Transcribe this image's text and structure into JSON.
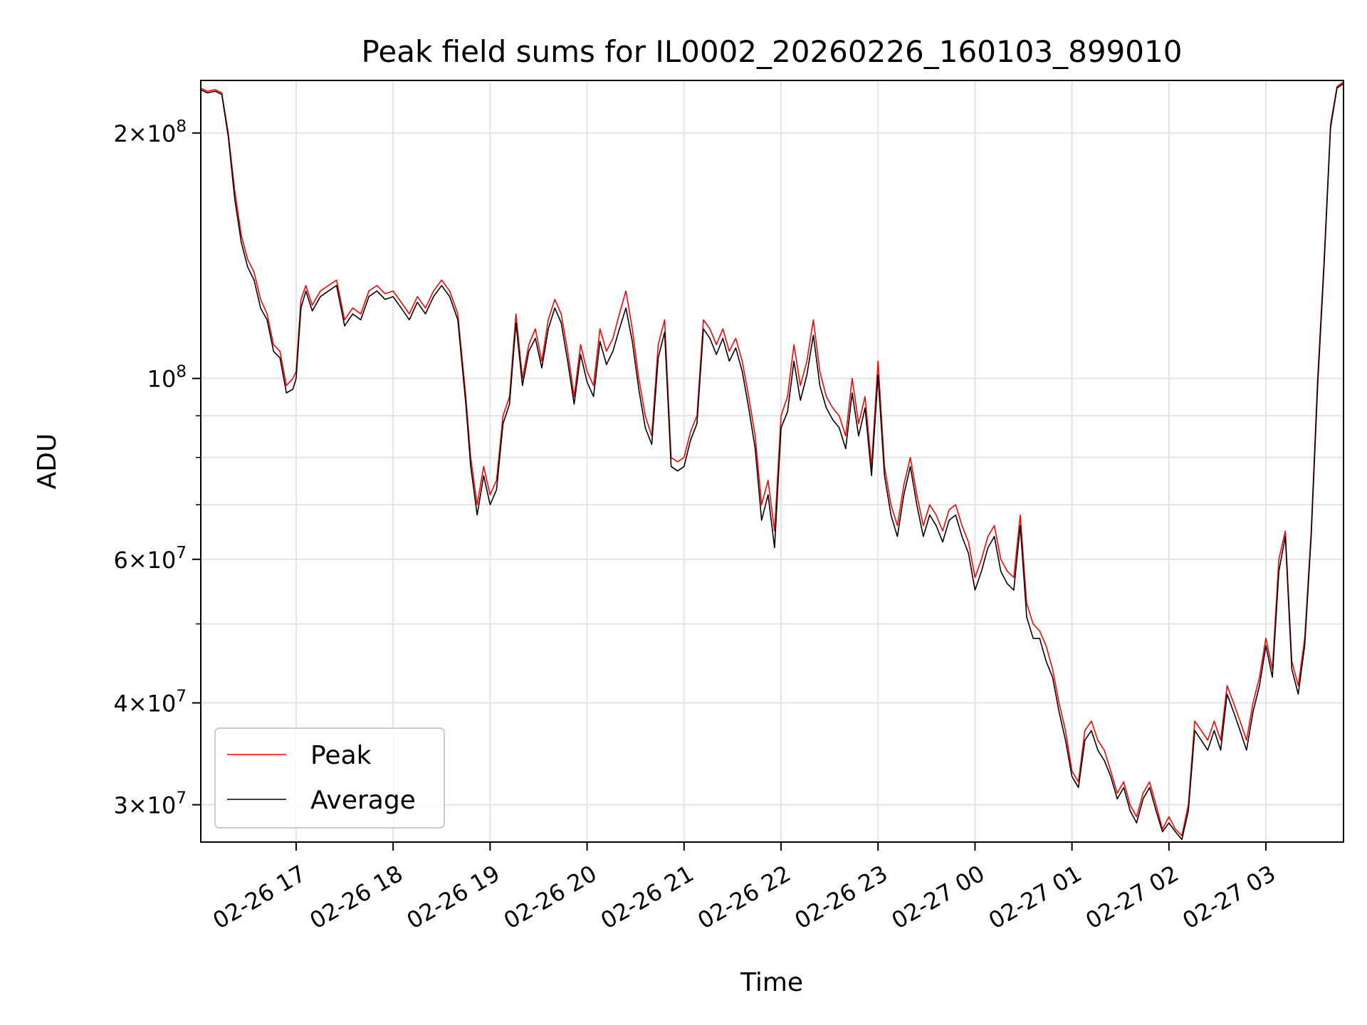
{
  "chart_data": {
    "type": "line",
    "title": "Peak field sums for IL0002_20260226_160103_899010",
    "xlabel": "Time",
    "ylabel": "ADU",
    "x_scale": "time",
    "y_scale": "log",
    "xlim": [
      "2026-02-26 16:01",
      "2026-02-27 03:48"
    ],
    "ylim": [
      27000000,
      232000000
    ],
    "x_ticks": [
      {
        "value": "2026-02-26 17:00",
        "label": "02-26 17"
      },
      {
        "value": "2026-02-26 18:00",
        "label": "02-26 18"
      },
      {
        "value": "2026-02-26 19:00",
        "label": "02-26 19"
      },
      {
        "value": "2026-02-26 20:00",
        "label": "02-26 20"
      },
      {
        "value": "2026-02-26 21:00",
        "label": "02-26 21"
      },
      {
        "value": "2026-02-26 22:00",
        "label": "02-26 22"
      },
      {
        "value": "2026-02-26 23:00",
        "label": "02-26 23"
      },
      {
        "value": "2026-02-27 00:00",
        "label": "02-27 00"
      },
      {
        "value": "2026-02-27 01:00",
        "label": "02-27 01"
      },
      {
        "value": "2026-02-27 02:00",
        "label": "02-27 02"
      },
      {
        "value": "2026-02-27 03:00",
        "label": "02-27 03"
      }
    ],
    "y_major_ticks": [
      {
        "value": 30000000,
        "mant": "3",
        "exp": "7"
      },
      {
        "value": 40000000,
        "mant": "4",
        "exp": "7"
      },
      {
        "value": 60000000,
        "mant": "6",
        "exp": "7"
      },
      {
        "value": 100000000,
        "mant": "",
        "exp": "8"
      },
      {
        "value": 200000000,
        "mant": "2",
        "exp": "8"
      }
    ],
    "y_minor_ticks": [
      50000000,
      70000000,
      80000000,
      90000000
    ],
    "grid": true,
    "legend_position": "lower-left",
    "series": [
      {
        "name": "Peak",
        "color": "#ff0000",
        "x": [
          "2026-02-26 16:01",
          "2026-02-26 16:05",
          "2026-02-26 16:10",
          "2026-02-26 16:14",
          "2026-02-26 16:18",
          "2026-02-26 16:22",
          "2026-02-26 16:26",
          "2026-02-26 16:30",
          "2026-02-26 16:34",
          "2026-02-26 16:38",
          "2026-02-26 16:42",
          "2026-02-26 16:46",
          "2026-02-26 16:50",
          "2026-02-26 16:54",
          "2026-02-26 16:58",
          "2026-02-26 17:00",
          "2026-02-26 17:03",
          "2026-02-26 17:06",
          "2026-02-26 17:10",
          "2026-02-26 17:15",
          "2026-02-26 17:20",
          "2026-02-26 17:25",
          "2026-02-26 17:30",
          "2026-02-26 17:35",
          "2026-02-26 17:40",
          "2026-02-26 17:45",
          "2026-02-26 17:50",
          "2026-02-26 17:55",
          "2026-02-26 18:00",
          "2026-02-26 18:05",
          "2026-02-26 18:10",
          "2026-02-26 18:15",
          "2026-02-26 18:20",
          "2026-02-26 18:25",
          "2026-02-26 18:30",
          "2026-02-26 18:35",
          "2026-02-26 18:40",
          "2026-02-26 18:45",
          "2026-02-26 18:48",
          "2026-02-26 18:52",
          "2026-02-26 18:56",
          "2026-02-26 19:00",
          "2026-02-26 19:04",
          "2026-02-26 19:08",
          "2026-02-26 19:12",
          "2026-02-26 19:16",
          "2026-02-26 19:20",
          "2026-02-26 19:24",
          "2026-02-26 19:28",
          "2026-02-26 19:32",
          "2026-02-26 19:36",
          "2026-02-26 19:40",
          "2026-02-26 19:44",
          "2026-02-26 19:48",
          "2026-02-26 19:52",
          "2026-02-26 19:56",
          "2026-02-26 20:00",
          "2026-02-26 20:04",
          "2026-02-26 20:08",
          "2026-02-26 20:12",
          "2026-02-26 20:16",
          "2026-02-26 20:20",
          "2026-02-26 20:24",
          "2026-02-26 20:28",
          "2026-02-26 20:32",
          "2026-02-26 20:36",
          "2026-02-26 20:40",
          "2026-02-26 20:44",
          "2026-02-26 20:48",
          "2026-02-26 20:52",
          "2026-02-26 20:56",
          "2026-02-26 21:00",
          "2026-02-26 21:04",
          "2026-02-26 21:08",
          "2026-02-26 21:12",
          "2026-02-26 21:16",
          "2026-02-26 21:20",
          "2026-02-26 21:24",
          "2026-02-26 21:28",
          "2026-02-26 21:32",
          "2026-02-26 21:36",
          "2026-02-26 21:40",
          "2026-02-26 21:44",
          "2026-02-26 21:48",
          "2026-02-26 21:52",
          "2026-02-26 21:56",
          "2026-02-26 22:00",
          "2026-02-26 22:04",
          "2026-02-26 22:08",
          "2026-02-26 22:12",
          "2026-02-26 22:16",
          "2026-02-26 22:20",
          "2026-02-26 22:24",
          "2026-02-26 22:28",
          "2026-02-26 22:32",
          "2026-02-26 22:36",
          "2026-02-26 22:40",
          "2026-02-26 22:44",
          "2026-02-26 22:48",
          "2026-02-26 22:52",
          "2026-02-26 22:56",
          "2026-02-26 23:00",
          "2026-02-26 23:04",
          "2026-02-26 23:08",
          "2026-02-26 23:12",
          "2026-02-26 23:16",
          "2026-02-26 23:20",
          "2026-02-26 23:24",
          "2026-02-26 23:28",
          "2026-02-26 23:32",
          "2026-02-26 23:36",
          "2026-02-26 23:40",
          "2026-02-26 23:44",
          "2026-02-26 23:48",
          "2026-02-26 23:52",
          "2026-02-26 23:56",
          "2026-02-27 00:00",
          "2026-02-27 00:04",
          "2026-02-27 00:08",
          "2026-02-27 00:12",
          "2026-02-27 00:16",
          "2026-02-27 00:20",
          "2026-02-27 00:24",
          "2026-02-27 00:28",
          "2026-02-27 00:32",
          "2026-02-27 00:36",
          "2026-02-27 00:40",
          "2026-02-27 00:44",
          "2026-02-27 00:48",
          "2026-02-27 00:52",
          "2026-02-27 00:56",
          "2026-02-27 01:00",
          "2026-02-27 01:04",
          "2026-02-27 01:08",
          "2026-02-27 01:12",
          "2026-02-27 01:16",
          "2026-02-27 01:20",
          "2026-02-27 01:24",
          "2026-02-27 01:28",
          "2026-02-27 01:32",
          "2026-02-27 01:36",
          "2026-02-27 01:40",
          "2026-02-27 01:44",
          "2026-02-27 01:48",
          "2026-02-27 01:52",
          "2026-02-27 01:56",
          "2026-02-27 02:00",
          "2026-02-27 02:04",
          "2026-02-27 02:08",
          "2026-02-27 02:12",
          "2026-02-27 02:16",
          "2026-02-27 02:20",
          "2026-02-27 02:24",
          "2026-02-27 02:28",
          "2026-02-27 02:32",
          "2026-02-27 02:36",
          "2026-02-27 02:40",
          "2026-02-27 02:44",
          "2026-02-27 02:48",
          "2026-02-27 02:52",
          "2026-02-27 02:56",
          "2026-02-27 03:00",
          "2026-02-27 03:04",
          "2026-02-27 03:08",
          "2026-02-27 03:12",
          "2026-02-27 03:16",
          "2026-02-27 03:20",
          "2026-02-27 03:24",
          "2026-02-27 03:28",
          "2026-02-27 03:32",
          "2026-02-27 03:36",
          "2026-02-27 03:40",
          "2026-02-27 03:44",
          "2026-02-27 03:48"
        ],
        "y": [
          227000000,
          225000000,
          226000000,
          224000000,
          200000000,
          170000000,
          150000000,
          140000000,
          135000000,
          125000000,
          120000000,
          110000000,
          108000000,
          98000000,
          100000000,
          102000000,
          125000000,
          130000000,
          123000000,
          128000000,
          130000000,
          132000000,
          118000000,
          122000000,
          120000000,
          128000000,
          130000000,
          127000000,
          128000000,
          124000000,
          120000000,
          126000000,
          122000000,
          128000000,
          132000000,
          128000000,
          120000000,
          95000000,
          80000000,
          70000000,
          78000000,
          72000000,
          75000000,
          90000000,
          95000000,
          120000000,
          100000000,
          110000000,
          115000000,
          105000000,
          118000000,
          125000000,
          120000000,
          108000000,
          95000000,
          110000000,
          102000000,
          98000000,
          115000000,
          108000000,
          112000000,
          120000000,
          128000000,
          115000000,
          100000000,
          90000000,
          85000000,
          110000000,
          118000000,
          80000000,
          79000000,
          80000000,
          86000000,
          90000000,
          118000000,
          115000000,
          110000000,
          115000000,
          108000000,
          112000000,
          105000000,
          95000000,
          85000000,
          70000000,
          75000000,
          65000000,
          90000000,
          95000000,
          110000000,
          98000000,
          105000000,
          118000000,
          102000000,
          95000000,
          92000000,
          90000000,
          85000000,
          100000000,
          88000000,
          95000000,
          78000000,
          105000000,
          78000000,
          70000000,
          66000000,
          74000000,
          80000000,
          72000000,
          66000000,
          70000000,
          68000000,
          65000000,
          69000000,
          70000000,
          66000000,
          63000000,
          57000000,
          60000000,
          64000000,
          66000000,
          60000000,
          58000000,
          57000000,
          68000000,
          53000000,
          50000000,
          49000000,
          47000000,
          44000000,
          40000000,
          37000000,
          33000000,
          32000000,
          37000000,
          38000000,
          36000000,
          35000000,
          33000000,
          31000000,
          32000000,
          30000000,
          29000000,
          31000000,
          32000000,
          30000000,
          28000000,
          29000000,
          28000000,
          27500000,
          30000000,
          38000000,
          37000000,
          36000000,
          38000000,
          36000000,
          42000000,
          40000000,
          38000000,
          36000000,
          40000000,
          43000000,
          48000000,
          44000000,
          60000000,
          65000000,
          45000000,
          42000000,
          48000000,
          65000000,
          100000000,
          140000000,
          205000000,
          228000000,
          231000000
        ]
      },
      {
        "name": "Average",
        "color": "#000000",
        "x": [
          "2026-02-26 16:01",
          "2026-02-26 16:05",
          "2026-02-26 16:10",
          "2026-02-26 16:14",
          "2026-02-26 16:18",
          "2026-02-26 16:22",
          "2026-02-26 16:26",
          "2026-02-26 16:30",
          "2026-02-26 16:34",
          "2026-02-26 16:38",
          "2026-02-26 16:42",
          "2026-02-26 16:46",
          "2026-02-26 16:50",
          "2026-02-26 16:54",
          "2026-02-26 16:58",
          "2026-02-26 17:00",
          "2026-02-26 17:03",
          "2026-02-26 17:06",
          "2026-02-26 17:10",
          "2026-02-26 17:15",
          "2026-02-26 17:20",
          "2026-02-26 17:25",
          "2026-02-26 17:30",
          "2026-02-26 17:35",
          "2026-02-26 17:40",
          "2026-02-26 17:45",
          "2026-02-26 17:50",
          "2026-02-26 17:55",
          "2026-02-26 18:00",
          "2026-02-26 18:05",
          "2026-02-26 18:10",
          "2026-02-26 18:15",
          "2026-02-26 18:20",
          "2026-02-26 18:25",
          "2026-02-26 18:30",
          "2026-02-26 18:35",
          "2026-02-26 18:40",
          "2026-02-26 18:45",
          "2026-02-26 18:48",
          "2026-02-26 18:52",
          "2026-02-26 18:56",
          "2026-02-26 19:00",
          "2026-02-26 19:04",
          "2026-02-26 19:08",
          "2026-02-26 19:12",
          "2026-02-26 19:16",
          "2026-02-26 19:20",
          "2026-02-26 19:24",
          "2026-02-26 19:28",
          "2026-02-26 19:32",
          "2026-02-26 19:36",
          "2026-02-26 19:40",
          "2026-02-26 19:44",
          "2026-02-26 19:48",
          "2026-02-26 19:52",
          "2026-02-26 19:56",
          "2026-02-26 20:00",
          "2026-02-26 20:04",
          "2026-02-26 20:08",
          "2026-02-26 20:12",
          "2026-02-26 20:16",
          "2026-02-26 20:20",
          "2026-02-26 20:24",
          "2026-02-26 20:28",
          "2026-02-26 20:32",
          "2026-02-26 20:36",
          "2026-02-26 20:40",
          "2026-02-26 20:44",
          "2026-02-26 20:48",
          "2026-02-26 20:52",
          "2026-02-26 20:56",
          "2026-02-26 21:00",
          "2026-02-26 21:04",
          "2026-02-26 21:08",
          "2026-02-26 21:12",
          "2026-02-26 21:16",
          "2026-02-26 21:20",
          "2026-02-26 21:24",
          "2026-02-26 21:28",
          "2026-02-26 21:32",
          "2026-02-26 21:36",
          "2026-02-26 21:40",
          "2026-02-26 21:44",
          "2026-02-26 21:48",
          "2026-02-26 21:52",
          "2026-02-26 21:56",
          "2026-02-26 22:00",
          "2026-02-26 22:04",
          "2026-02-26 22:08",
          "2026-02-26 22:12",
          "2026-02-26 22:16",
          "2026-02-26 22:20",
          "2026-02-26 22:24",
          "2026-02-26 22:28",
          "2026-02-26 22:32",
          "2026-02-26 22:36",
          "2026-02-26 22:40",
          "2026-02-26 22:44",
          "2026-02-26 22:48",
          "2026-02-26 22:52",
          "2026-02-26 22:56",
          "2026-02-26 23:00",
          "2026-02-26 23:04",
          "2026-02-26 23:08",
          "2026-02-26 23:12",
          "2026-02-26 23:16",
          "2026-02-26 23:20",
          "2026-02-26 23:24",
          "2026-02-26 23:28",
          "2026-02-26 23:32",
          "2026-02-26 23:36",
          "2026-02-26 23:40",
          "2026-02-26 23:44",
          "2026-02-26 23:48",
          "2026-02-26 23:52",
          "2026-02-26 23:56",
          "2026-02-27 00:00",
          "2026-02-27 00:04",
          "2026-02-27 00:08",
          "2026-02-27 00:12",
          "2026-02-27 00:16",
          "2026-02-27 00:20",
          "2026-02-27 00:24",
          "2026-02-27 00:28",
          "2026-02-27 00:32",
          "2026-02-27 00:36",
          "2026-02-27 00:40",
          "2026-02-27 00:44",
          "2026-02-27 00:48",
          "2026-02-27 00:52",
          "2026-02-27 00:56",
          "2026-02-27 01:00",
          "2026-02-27 01:04",
          "2026-02-27 01:08",
          "2026-02-27 01:12",
          "2026-02-27 01:16",
          "2026-02-27 01:20",
          "2026-02-27 01:24",
          "2026-02-27 01:28",
          "2026-02-27 01:32",
          "2026-02-27 01:36",
          "2026-02-27 01:40",
          "2026-02-27 01:44",
          "2026-02-27 01:48",
          "2026-02-27 01:52",
          "2026-02-27 01:56",
          "2026-02-27 02:00",
          "2026-02-27 02:04",
          "2026-02-27 02:08",
          "2026-02-27 02:12",
          "2026-02-27 02:16",
          "2026-02-27 02:20",
          "2026-02-27 02:24",
          "2026-02-27 02:28",
          "2026-02-27 02:32",
          "2026-02-27 02:36",
          "2026-02-27 02:40",
          "2026-02-27 02:44",
          "2026-02-27 02:48",
          "2026-02-27 02:52",
          "2026-02-27 02:56",
          "2026-02-27 03:00",
          "2026-02-27 03:04",
          "2026-02-27 03:08",
          "2026-02-27 03:12",
          "2026-02-27 03:16",
          "2026-02-27 03:20",
          "2026-02-27 03:24",
          "2026-02-27 03:28",
          "2026-02-27 03:32",
          "2026-02-27 03:36",
          "2026-02-27 03:40",
          "2026-02-27 03:44",
          "2026-02-27 03:48"
        ],
        "y": [
          226000000,
          224000000,
          225000000,
          223000000,
          198000000,
          166000000,
          147000000,
          137000000,
          132000000,
          122000000,
          118000000,
          108000000,
          106000000,
          96000000,
          97000000,
          100000000,
          122000000,
          128000000,
          121000000,
          126000000,
          128000000,
          130000000,
          116000000,
          120000000,
          118000000,
          126000000,
          128000000,
          125000000,
          126000000,
          122000000,
          118000000,
          124000000,
          120000000,
          126000000,
          130000000,
          126000000,
          118000000,
          93000000,
          78000000,
          68000000,
          76000000,
          70000000,
          73000000,
          88000000,
          93000000,
          117000000,
          98000000,
          108000000,
          112000000,
          103000000,
          115000000,
          122000000,
          117000000,
          105000000,
          93000000,
          107000000,
          99000000,
          95000000,
          111000000,
          104000000,
          108000000,
          115000000,
          122000000,
          111000000,
          97000000,
          87000000,
          83000000,
          106000000,
          114000000,
          78000000,
          77000000,
          78000000,
          84000000,
          88000000,
          115000000,
          112000000,
          107000000,
          112000000,
          105000000,
          109000000,
          102000000,
          92000000,
          82000000,
          67000000,
          72000000,
          62000000,
          87000000,
          91000000,
          105000000,
          94000000,
          101000000,
          113000000,
          98000000,
          92000000,
          89000000,
          87000000,
          82000000,
          96000000,
          85000000,
          92000000,
          76000000,
          101000000,
          76000000,
          68000000,
          64000000,
          72000000,
          78000000,
          70000000,
          64000000,
          68000000,
          66000000,
          63000000,
          67000000,
          68000000,
          64000000,
          61000000,
          55000000,
          58000000,
          62000000,
          64000000,
          58000000,
          56000000,
          55000000,
          66000000,
          51000000,
          48000000,
          48000000,
          45000000,
          43000000,
          39000000,
          36000000,
          32500000,
          31500000,
          36000000,
          37000000,
          35000000,
          34000000,
          32500000,
          30500000,
          31500000,
          29500000,
          28500000,
          30500000,
          31500000,
          29500000,
          27800000,
          28500000,
          27800000,
          27200000,
          29500000,
          37000000,
          36000000,
          35000000,
          37000000,
          35000000,
          41000000,
          39000000,
          37000000,
          35000000,
          39000000,
          42000000,
          47000000,
          43000000,
          58000000,
          64000000,
          44000000,
          41000000,
          47000000,
          64000000,
          98000000,
          138000000,
          203000000,
          227000000,
          230000000
        ]
      }
    ]
  }
}
